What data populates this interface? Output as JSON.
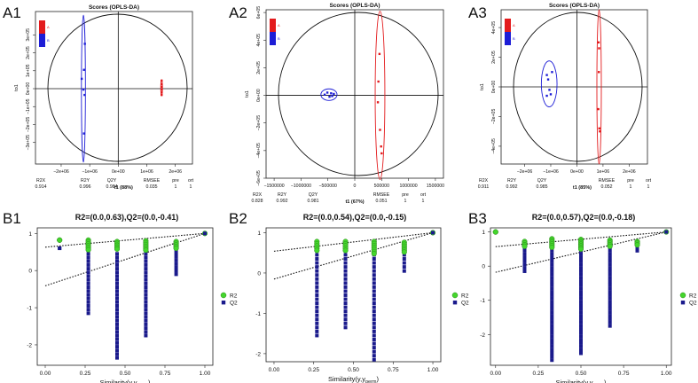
{
  "chart_data": [
    {
      "panel_label": "A1",
      "type": "scatter",
      "title": "Scores (OPLS-DA)",
      "xlabel": "t1 (88%)",
      "ylabel": "to1",
      "xlim": [
        -2.9,
        2.6
      ],
      "ylim": [
        -4.2,
        4.3
      ],
      "xticks": [
        {
          "v": -2,
          "t": "−2e+06"
        },
        {
          "v": -1,
          "t": "−1e+06"
        },
        {
          "v": 0,
          "t": "0e+00"
        },
        {
          "v": 1,
          "t": "1e+06"
        },
        {
          "v": 2,
          "t": "2e+06"
        }
      ],
      "yticks": [
        {
          "v": 3,
          "t": "3e+05"
        },
        {
          "v": 2,
          "t": "2e+05"
        },
        {
          "v": 1,
          "t": "1e+05"
        },
        {
          "v": 0,
          "t": "0e+00"
        },
        {
          "v": -1,
          "t": "−1e+05"
        },
        {
          "v": -2,
          "t": "−2e+05"
        },
        {
          "v": -3,
          "t": "−3e+05"
        }
      ],
      "groups": [
        {
          "name": "Group B",
          "color": "#1d1dd6",
          "points": [
            [
              -1.17,
              2.5
            ],
            [
              -1.2,
              1.05
            ],
            [
              -1.28,
              0.55
            ],
            [
              -1.22,
              -0.05
            ],
            [
              -1.18,
              -0.35
            ],
            [
              -1.2,
              -2.5
            ]
          ],
          "ellipse": {
            "cx": -1.22,
            "cy": 0.0,
            "rx": 0.07,
            "ry": 4.1
          }
        },
        {
          "name": "Group A",
          "color": "#e31a1c",
          "points": [
            [
              1.52,
              0.45
            ],
            [
              1.52,
              0.25
            ],
            [
              1.52,
              0.1
            ],
            [
              1.52,
              -0.05
            ],
            [
              1.52,
              -0.2
            ],
            [
              1.52,
              -0.35
            ]
          ],
          "ellipse": {
            "cx": 1.52,
            "cy": 0.05,
            "rx": 0.03,
            "ry": 0.45
          }
        }
      ],
      "stats": {
        "headers": [
          "R2X",
          "R2Y",
          "Q2Y",
          "RMSEE",
          "pre",
          "ort"
        ],
        "values": [
          "0.914",
          "0.996",
          "0.984",
          "0.035",
          "1",
          "1"
        ]
      },
      "legend": [
        "A",
        "B"
      ]
    },
    {
      "panel_label": "A2",
      "type": "scatter",
      "title": "Scores (OPLS-DA)",
      "xlabel": "t1 (67%)",
      "ylabel": "to1",
      "xlim": [
        -1650000,
        1650000
      ],
      "ylim": [
        -6.0,
        6.2
      ],
      "xticks": [
        {
          "v": -1500000,
          "t": "−1500000"
        },
        {
          "v": -1000000,
          "t": "−1000000"
        },
        {
          "v": -500000,
          "t": "−500000"
        },
        {
          "v": 0,
          "t": "0"
        },
        {
          "v": 500000,
          "t": "500000"
        },
        {
          "v": 1000000,
          "t": "1000000"
        },
        {
          "v": 1500000,
          "t": "1500000"
        }
      ],
      "yticks": [
        {
          "v": 6,
          "t": "6e+05"
        },
        {
          "v": 4,
          "t": "4e+05"
        },
        {
          "v": 2,
          "t": "2e+05"
        },
        {
          "v": 0,
          "t": "0e+00"
        },
        {
          "v": -2,
          "t": "−2e+05"
        },
        {
          "v": -4,
          "t": "−4e+05"
        },
        {
          "v": -6,
          "t": "−6e+05"
        }
      ],
      "groups": [
        {
          "name": "Group B",
          "color": "#1d1dd6",
          "points": [
            [
              -560000,
              0.05
            ],
            [
              -510000,
              0.2
            ],
            [
              -470000,
              -0.1
            ],
            [
              -440000,
              0.15
            ],
            [
              -420000,
              -0.05
            ],
            [
              -390000,
              0.1
            ]
          ],
          "ellipse": {
            "cx": -480000,
            "cy": 0.05,
            "rx": 150000,
            "ry": 0.42
          }
        },
        {
          "name": "Group A",
          "color": "#e31a1c",
          "points": [
            [
              460000,
              3.0
            ],
            [
              440000,
              1.0
            ],
            [
              430000,
              -0.5
            ],
            [
              470000,
              -2.5
            ],
            [
              490000,
              -3.7
            ],
            [
              500000,
              -4.2
            ]
          ],
          "ellipse": {
            "cx": 470000,
            "cy": 0.0,
            "rx": 90000,
            "ry": 6.1
          }
        }
      ],
      "stats": {
        "headers": [
          "R2X",
          "R2Y",
          "Q2Y",
          "RMSEE",
          "pre",
          "ort"
        ],
        "values": [
          "0.828",
          "0.992",
          "0.981",
          "0.051",
          "1",
          "1"
        ]
      },
      "legend": [
        "A",
        "B"
      ]
    },
    {
      "panel_label": "A3",
      "type": "scatter",
      "title": "Scores (OPLS-DA)",
      "xlabel": "t1 (85%)",
      "ylabel": "to1",
      "xlim": [
        -2.9,
        2.7
      ],
      "ylim": [
        -5.2,
        5.2
      ],
      "xticks": [
        {
          "v": -2,
          "t": "−2e+06"
        },
        {
          "v": -1,
          "t": "−1e+06"
        },
        {
          "v": 0,
          "t": "0e+00"
        },
        {
          "v": 1,
          "t": "1e+06"
        },
        {
          "v": 2,
          "t": "2e+06"
        }
      ],
      "yticks": [
        {
          "v": 4,
          "t": "4e+05"
        },
        {
          "v": 2,
          "t": "2e+05"
        },
        {
          "v": 0,
          "t": "0e+00"
        },
        {
          "v": -2,
          "t": "−2e+05"
        },
        {
          "v": -4,
          "t": "−4e+05"
        }
      ],
      "groups": [
        {
          "name": "Group B",
          "color": "#1d1dd6",
          "points": [
            [
              -1.15,
              0.8
            ],
            [
              -1.1,
              0.5
            ],
            [
              -0.95,
              1.0
            ],
            [
              -1.05,
              -0.2
            ],
            [
              -1.15,
              -0.6
            ],
            [
              -1.0,
              -0.5
            ]
          ],
          "ellipse": {
            "cx": -1.06,
            "cy": 0.2,
            "rx": 0.3,
            "ry": 1.55
          }
        },
        {
          "name": "Group A",
          "color": "#e31a1c",
          "points": [
            [
              0.83,
              3.0
            ],
            [
              0.85,
              2.6
            ],
            [
              0.84,
              1.0
            ],
            [
              0.82,
              -1.5
            ],
            [
              0.86,
              -2.8
            ],
            [
              0.88,
              -3.0
            ]
          ],
          "ellipse": {
            "cx": 0.85,
            "cy": 0.0,
            "rx": 0.085,
            "ry": 5.2
          }
        }
      ],
      "stats": {
        "headers": [
          "R2X",
          "R2Y",
          "Q2Y",
          "RMSEE",
          "pre",
          "ort"
        ],
        "values": [
          "0.911",
          "0.992",
          "0.985",
          "0.052",
          "1",
          "1"
        ]
      },
      "legend": [
        "A",
        "B"
      ]
    },
    {
      "panel_label": "B1",
      "type": "scatter",
      "title": "R2=(0.0,0.63),Q2=(0.0,-0.41)",
      "xlabel_main": "Similarity(y,y",
      "xlabel_sub": "perm",
      "xlabel_end": ")",
      "xlim": [
        -0.05,
        1.05
      ],
      "ylim": [
        -2.55,
        1.15
      ],
      "xticks": [
        0.0,
        0.25,
        0.5,
        0.75,
        1.0
      ],
      "xtick_labels": [
        "0.00",
        "0.25",
        "0.50",
        "0.75",
        "1.00"
      ],
      "yticks": [
        1,
        0,
        -1,
        -2
      ],
      "ytick_labels": [
        "1",
        "0",
        "-1",
        "-2"
      ],
      "r2_line": [
        [
          0,
          0.63
        ],
        [
          1,
          1.0
        ]
      ],
      "q2_line": [
        [
          0,
          -0.41
        ],
        [
          1,
          1.0
        ]
      ],
      "r2_columns": [
        {
          "x": 0.09,
          "min": 0.82,
          "max": 0.82
        },
        {
          "x": 0.27,
          "min": 0.56,
          "max": 0.82
        },
        {
          "x": 0.45,
          "min": 0.58,
          "max": 0.78
        },
        {
          "x": 0.63,
          "min": 0.55,
          "max": 0.8
        },
        {
          "x": 0.82,
          "min": 0.6,
          "max": 0.78
        }
      ],
      "q2_columns": [
        {
          "x": 0.09,
          "min": 0.6,
          "max": 0.6
        },
        {
          "x": 0.27,
          "min": -1.15,
          "max": 0.55
        },
        {
          "x": 0.45,
          "min": -2.35,
          "max": 0.45
        },
        {
          "x": 0.63,
          "min": -1.75,
          "max": 0.55
        },
        {
          "x": 0.82,
          "min": -0.1,
          "max": 0.55
        }
      ],
      "series": [
        {
          "name": "R2",
          "color": "#44d62c"
        },
        {
          "name": "Q2",
          "color": "#1a1a8c"
        }
      ],
      "final_point": [
        1.0,
        1.0
      ]
    },
    {
      "panel_label": "B2",
      "type": "scatter",
      "title": "R2=(0.0,0.54),Q2=(0.0,-0.15)",
      "xlabel_main": "Similarity(y,y",
      "xlabel_sub": "perm",
      "xlabel_end": ")",
      "xlim": [
        -0.05,
        1.05
      ],
      "ylim": [
        -2.2,
        1.12
      ],
      "xticks": [
        0.0,
        0.25,
        0.5,
        0.75,
        1.0
      ],
      "xtick_labels": [
        "0.00",
        "0.25",
        "0.50",
        "0.75",
        "1.00"
      ],
      "yticks": [
        1,
        0,
        -1,
        -2
      ],
      "ytick_labels": [
        "1",
        "0",
        "-1",
        "-2"
      ],
      "r2_line": [
        [
          0,
          0.54
        ],
        [
          1,
          1.0
        ]
      ],
      "q2_line": [
        [
          0,
          -0.15
        ],
        [
          1,
          1.0
        ]
      ],
      "r2_columns": [
        {
          "x": 0.27,
          "min": 0.56,
          "max": 0.78
        },
        {
          "x": 0.45,
          "min": 0.56,
          "max": 0.78
        },
        {
          "x": 0.63,
          "min": 0.48,
          "max": 0.78
        },
        {
          "x": 0.82,
          "min": 0.52,
          "max": 0.76
        }
      ],
      "q2_columns": [
        {
          "x": 0.27,
          "min": -1.55,
          "max": 0.55
        },
        {
          "x": 0.45,
          "min": -1.35,
          "max": 0.55
        },
        {
          "x": 0.63,
          "min": -2.15,
          "max": 0.55
        },
        {
          "x": 0.82,
          "min": 0.05,
          "max": 0.55
        }
      ],
      "series": [
        {
          "name": "R2",
          "color": "#44d62c"
        },
        {
          "name": "Q2",
          "color": "#1a1a8c"
        }
      ],
      "final_point": [
        1.0,
        1.0
      ]
    },
    {
      "panel_label": "B3",
      "type": "scatter",
      "title": "R2=(0.0,0.57),Q2=(0.0,-0.18)",
      "xlabel_main": "Similarity(y,y",
      "xlabel_sub": "perm",
      "xlabel_end": ")",
      "xlim": [
        -0.03,
        1.03
      ],
      "ylim": [
        -2.9,
        1.12
      ],
      "xticks": [
        0.0,
        0.25,
        0.5,
        0.75,
        1.0
      ],
      "xtick_labels": [
        "0.00",
        "0.25",
        "0.50",
        "0.75",
        "1.00"
      ],
      "yticks": [
        1,
        0,
        -1,
        -2
      ],
      "ytick_labels": [
        "1",
        "0",
        "-1",
        "-2"
      ],
      "r2_line": [
        [
          0,
          0.57
        ],
        [
          1,
          1.0
        ]
      ],
      "q2_line": [
        [
          0,
          -0.18
        ],
        [
          1,
          1.0
        ]
      ],
      "r2_columns": [
        {
          "x": 0.0,
          "min": 1.0,
          "max": 1.0
        },
        {
          "x": 0.17,
          "min": 0.58,
          "max": 0.72
        },
        {
          "x": 0.33,
          "min": 0.55,
          "max": 0.8
        },
        {
          "x": 0.5,
          "min": 0.5,
          "max": 0.78
        },
        {
          "x": 0.67,
          "min": 0.58,
          "max": 0.76
        },
        {
          "x": 0.83,
          "min": 0.62,
          "max": 0.72
        }
      ],
      "q2_columns": [
        {
          "x": 0.0,
          "min": 1.0,
          "max": 1.0
        },
        {
          "x": 0.17,
          "min": -0.15,
          "max": 0.55
        },
        {
          "x": 0.33,
          "min": -2.75,
          "max": 0.55
        },
        {
          "x": 0.5,
          "min": -2.55,
          "max": 0.55
        },
        {
          "x": 0.67,
          "min": -1.75,
          "max": 0.55
        },
        {
          "x": 0.83,
          "min": 0.45,
          "max": 0.55
        }
      ],
      "series": [
        {
          "name": "R2",
          "color": "#44d62c"
        },
        {
          "name": "Q2",
          "color": "#1a1a8c"
        }
      ],
      "final_point": [
        1.0,
        1.0
      ]
    }
  ]
}
